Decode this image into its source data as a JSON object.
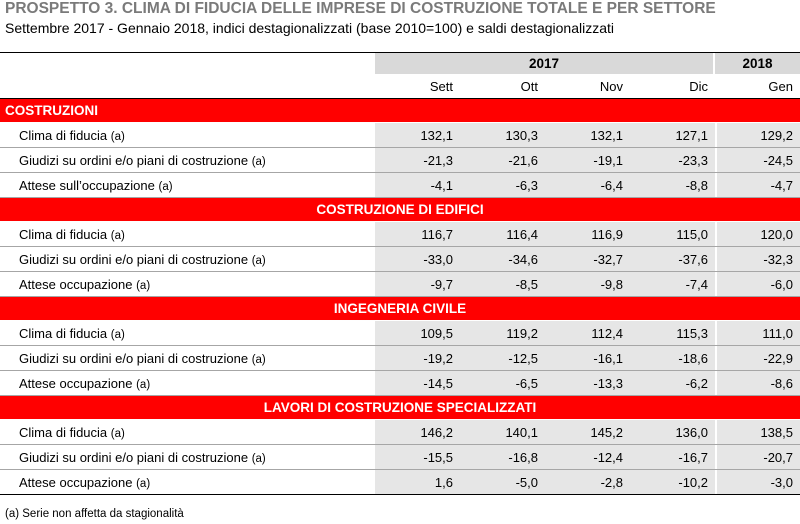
{
  "title": "PROSPETTO 3. CLIMA DI FIDUCIA DELLE IMPRESE DI COSTRUZIONE TOTALE E PER SETTORE",
  "subtitle": "Settembre 2017 - Gennaio 2018, indici destagionalizzati (base 2010=100) e saldi destagionalizzati",
  "header": {
    "year_2017": "2017",
    "year_2018": "2018",
    "months": [
      "Sett",
      "Ott",
      "Nov",
      "Dic",
      "Gen"
    ]
  },
  "sections": [
    {
      "title": "COSTRUZIONI",
      "rows": [
        {
          "label": "Clima di fiducia",
          "suffix": "(a)",
          "values": [
            "132,1",
            "130,3",
            "132,1",
            "127,1",
            "129,2"
          ]
        },
        {
          "label": "Giudizi su ordini e/o piani di costruzione",
          "suffix": "(a)",
          "values": [
            "-21,3",
            "-21,6",
            "-19,1",
            "-23,3",
            "-24,5"
          ]
        },
        {
          "label": "Attese sull’occupazione",
          "suffix": "(a)",
          "values": [
            "-4,1",
            "-6,3",
            "-6,4",
            "-8,8",
            "-4,7"
          ]
        }
      ]
    },
    {
      "title": "COSTRUZIONE DI EDIFICI",
      "rows": [
        {
          "label": "Clima di fiducia",
          "suffix": "(a)",
          "values": [
            "116,7",
            "116,4",
            "116,9",
            "115,0",
            "120,0"
          ]
        },
        {
          "label": "Giudizi su ordini e/o piani di costruzione",
          "suffix": "(a)",
          "values": [
            "-33,0",
            "-34,6",
            "-32,7",
            "-37,6",
            "-32,3"
          ]
        },
        {
          "label": "Attese occupazione",
          "suffix": "(a)",
          "values": [
            "-9,7",
            "-8,5",
            "-9,8",
            "-7,4",
            "-6,0"
          ]
        }
      ]
    },
    {
      "title": "INGEGNERIA CIVILE",
      "rows": [
        {
          "label": "Clima di fiducia",
          "suffix": "(a)",
          "values": [
            "109,5",
            "119,2",
            "112,4",
            "115,3",
            "111,0"
          ]
        },
        {
          "label": "Giudizi su ordini e/o piani di costruzione",
          "suffix": "(a)",
          "values": [
            "-19,2",
            "-12,5",
            "-16,1",
            "-18,6",
            "-22,9"
          ]
        },
        {
          "label": "Attese occupazione",
          "suffix": "(a)",
          "values": [
            "-14,5",
            "-6,5",
            "-13,3",
            "-6,2",
            "-8,6"
          ]
        }
      ]
    },
    {
      "title": "LAVORI DI COSTRUZIONE SPECIALIZZATI",
      "rows": [
        {
          "label": "Clima di fiducia",
          "suffix": "(a)",
          "values": [
            "146,2",
            "140,1",
            "145,2",
            "136,0",
            "138,5"
          ]
        },
        {
          "label": "Giudizi su ordini e/o piani di costruzione",
          "suffix": "(a)",
          "values": [
            "-15,5",
            "-16,8",
            "-12,4",
            "-16,7",
            "-20,7"
          ]
        },
        {
          "label": "Attese occupazione",
          "suffix": "(a)",
          "values": [
            "1,6",
            "-5,0",
            "-2,8",
            "-10,2",
            "-3,0"
          ]
        }
      ]
    }
  ],
  "footnote": "(a) Serie non affetta da stagionalità",
  "colors": {
    "section_bar": "#ff0000",
    "shade": "#e6e6e6",
    "year_shade": "#d9d9d9",
    "title": "#7a7a7a"
  }
}
